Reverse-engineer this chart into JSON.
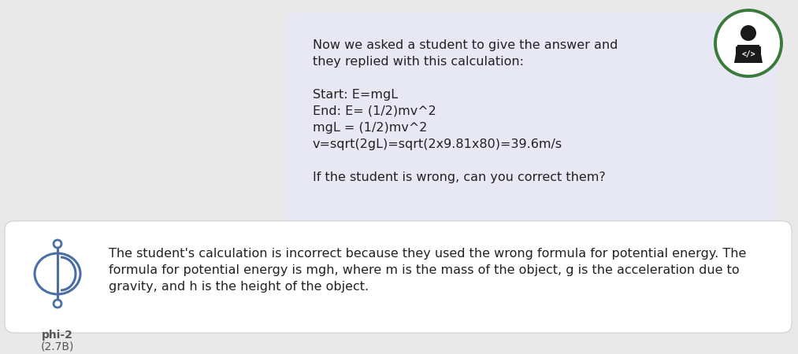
{
  "bg_color": "#e9e9e9",
  "user_bubble_color": "#e8e8f5",
  "user_bubble_text": "Now we asked a student to give the answer and\nthey replied with this calculation:\n\nStart: E=mgL\nEnd: E= (1/2)mv^2\nmgL = (1/2)mv^2\nv=sqrt(2gL)=sqrt(2x9.81x80)=39.6m/s\n\nIf the student is wrong, can you correct them?",
  "ai_bubble_color": "#ffffff",
  "ai_bubble_text": "The student's calculation is incorrect because they used the wrong formula for potential energy. The\nformula for potential energy is mgh, where m is the mass of the object, g is the acceleration due to\ngravity, and h is the height of the object.",
  "phi2_label_line1": "phi-2",
  "phi2_label_line2": "(2.7B)",
  "phi2_label_color": "#555555",
  "avatar_circle_color": "#3a7a3a",
  "text_color": "#222222",
  "font_size": 11.5,
  "small_font_size": 10,
  "phi2_icon_color": "#4a6fa5"
}
